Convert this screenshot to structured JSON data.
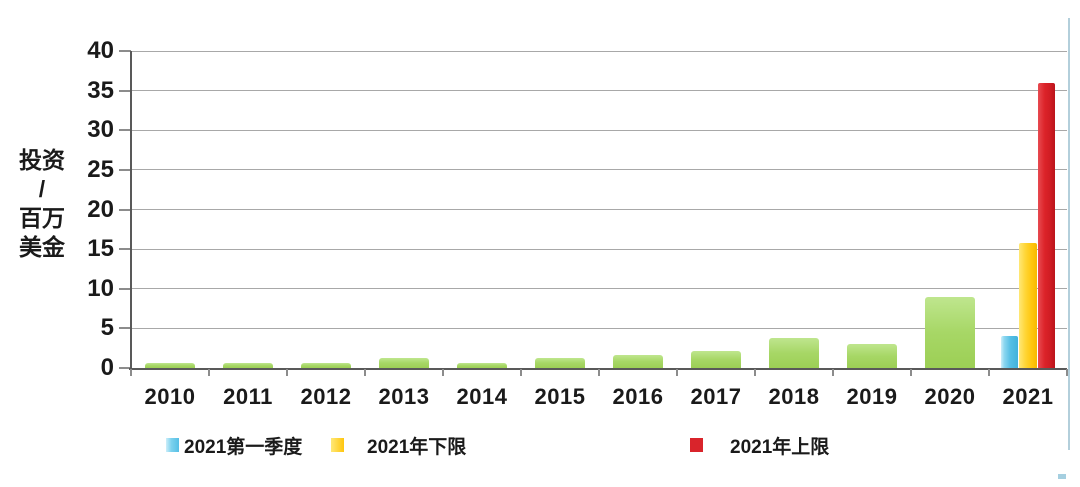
{
  "chart_data": {
    "type": "bar",
    "title": "",
    "categories": [
      "2010",
      "2011",
      "2012",
      "2013",
      "2014",
      "2015",
      "2016",
      "2017",
      "2018",
      "2019",
      "2020",
      "2021"
    ],
    "series": [
      {
        "name": "",
        "legend_visible": false,
        "color": "#a7d766",
        "values": [
          0.6,
          0.6,
          0.6,
          1.2,
          0.6,
          1.3,
          1.6,
          2.1,
          3.8,
          3.0,
          8.9,
          null
        ]
      },
      {
        "name": "2021第一季度",
        "legend_visible": true,
        "color": "#55bfe5",
        "values": [
          null,
          null,
          null,
          null,
          null,
          null,
          null,
          null,
          null,
          null,
          null,
          4.1
        ]
      },
      {
        "name": "2021年下限",
        "legend_visible": true,
        "color": "#ffc60e",
        "values": [
          null,
          null,
          null,
          null,
          null,
          null,
          null,
          null,
          null,
          null,
          null,
          15.8
        ]
      },
      {
        "name": "2021年上限",
        "legend_visible": true,
        "color": "#d9242b",
        "values": [
          null,
          null,
          null,
          null,
          null,
          null,
          null,
          null,
          null,
          null,
          null,
          36
        ]
      }
    ],
    "xlabel": "",
    "ylabel": "投资/百万美金",
    "ylim": [
      0,
      40
    ],
    "ytick_step": 5,
    "grid": true,
    "legend_position": "bottom"
  },
  "y_axis": {
    "title_lines": [
      "投资",
      "/",
      "百万",
      "美金"
    ]
  },
  "legend": {
    "items": [
      {
        "label": "2021第一季度",
        "color": "#55bfe5"
      },
      {
        "label": "2021年下限",
        "color": "#ffc60e"
      },
      {
        "label": "2021年上限",
        "color": "#d9242b"
      }
    ]
  },
  "colors": {
    "grid": "#a8a8a8",
    "axis": "#595959",
    "text": "#1a1a1a",
    "bar_green": "#a7d766",
    "bar_blue": "#55bfe5",
    "bar_yellow": "#ffc60e",
    "bar_red": "#d9242b",
    "page_border": "#b3cfdb"
  }
}
